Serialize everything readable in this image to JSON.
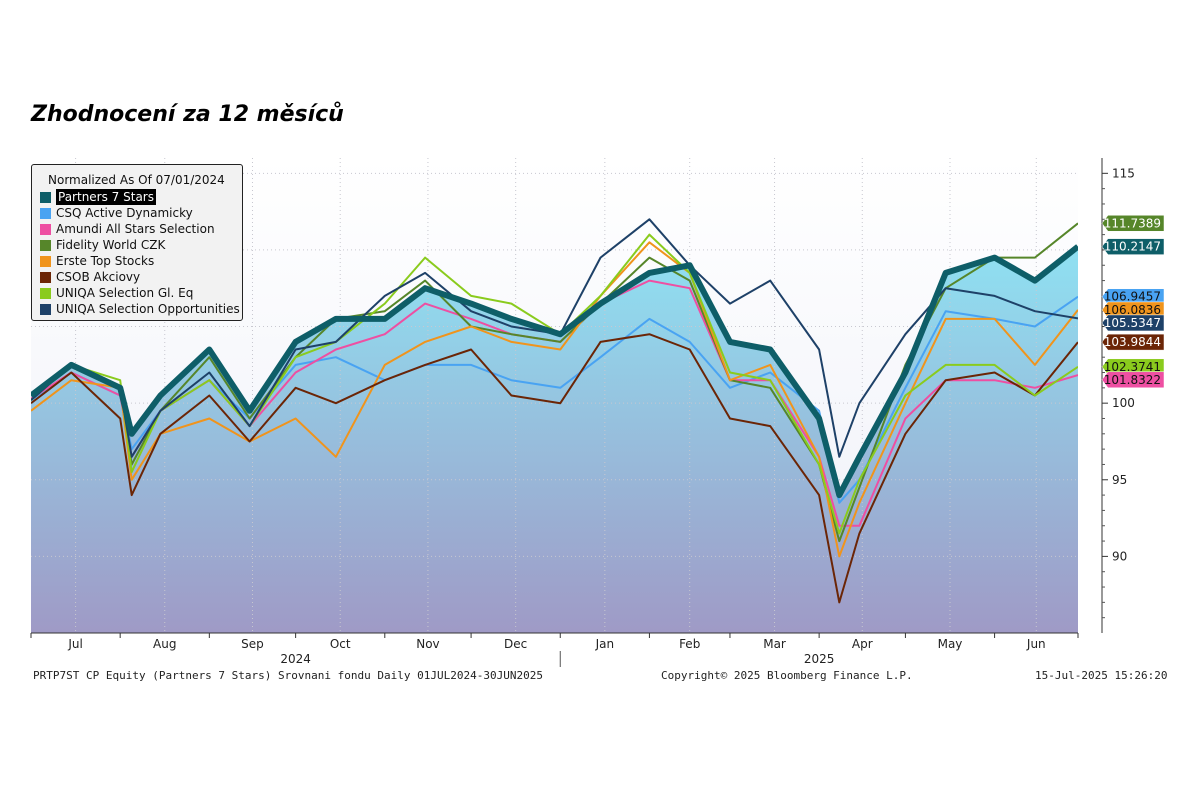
{
  "title": "Zhodnocení za 12 měsíců",
  "footer": {
    "left": "PRTP7ST CP Equity (Partners 7 Stars) Srovnani fondu  Daily 01JUL2024-30JUN2025",
    "center": "Copyright© 2025 Bloomberg Finance L.P.",
    "right": "15-Jul-2025 15:26:20"
  },
  "chart_data": {
    "type": "line",
    "legend_title": "Normalized As Of 07/01/2024",
    "legend_position": "top-left",
    "grid": true,
    "ylim": [
      85,
      116
    ],
    "y_ticks": [
      90,
      95,
      100,
      105,
      110,
      115
    ],
    "x_ticks": [
      "Jul",
      "Aug",
      "Sep",
      "Oct",
      "Nov",
      "Dec",
      "Jan",
      "Feb",
      "Mar",
      "Apr",
      "May",
      "Jun"
    ],
    "year_labels": [
      "2024",
      "2025"
    ],
    "x": [
      "2024-07-01",
      "2024-07-15",
      "2024-08-01",
      "2024-08-05",
      "2024-08-15",
      "2024-09-01",
      "2024-09-15",
      "2024-10-01",
      "2024-10-15",
      "2024-11-01",
      "2024-11-15",
      "2024-12-01",
      "2024-12-15",
      "2025-01-01",
      "2025-01-15",
      "2025-02-01",
      "2025-02-15",
      "2025-03-01",
      "2025-03-15",
      "2025-04-01",
      "2025-04-08",
      "2025-04-15",
      "2025-05-01",
      "2025-05-15",
      "2025-06-01",
      "2025-06-15",
      "2025-06-30"
    ],
    "series": [
      {
        "name": "Partners 7 Stars",
        "color": "#0e5e68",
        "last_label": "110.2147",
        "values": [
          100.5,
          102.5,
          101.0,
          98.0,
          100.5,
          103.5,
          99.5,
          104.0,
          105.5,
          105.5,
          107.5,
          106.5,
          105.5,
          104.5,
          106.5,
          108.5,
          109.0,
          104.0,
          103.5,
          99.0,
          94.0,
          96.5,
          102.0,
          108.5,
          109.5,
          108.0,
          110.2147
        ]
      },
      {
        "name": "CSQ Active Dynamicky",
        "color": "#49a3f2",
        "last_label": "106.9457",
        "values": [
          100.2,
          102.0,
          100.5,
          97.0,
          99.5,
          101.5,
          99.0,
          102.5,
          103.0,
          101.5,
          102.5,
          102.5,
          101.5,
          101.0,
          103.0,
          105.5,
          104.0,
          101.0,
          102.0,
          99.5,
          93.5,
          95.0,
          101.0,
          106.0,
          105.5,
          105.0,
          106.9457
        ]
      },
      {
        "name": "Amundi All Stars Selection",
        "color": "#ee4fa2",
        "last_label": "101.8322",
        "values": [
          100.3,
          102.0,
          100.5,
          96.5,
          99.5,
          101.5,
          98.5,
          102.0,
          103.5,
          104.5,
          106.5,
          105.5,
          104.5,
          104.0,
          106.5,
          108.0,
          107.5,
          101.5,
          101.5,
          96.5,
          92.0,
          92.0,
          99.0,
          101.5,
          101.5,
          101.0,
          101.8322
        ]
      },
      {
        "name": "Fidelity World CZK",
        "color": "#56862a",
        "last_label": "111.7389",
        "values": [
          100.2,
          102.5,
          101.0,
          96.0,
          99.5,
          103.0,
          99.0,
          103.0,
          105.5,
          106.0,
          108.0,
          105.0,
          104.5,
          104.0,
          106.5,
          109.5,
          108.0,
          101.5,
          101.0,
          96.0,
          91.0,
          94.5,
          102.5,
          107.5,
          109.5,
          109.5,
          111.7389
        ]
      },
      {
        "name": "Erste Top Stocks",
        "color": "#f0941c",
        "last_label": "106.0836",
        "values": [
          99.5,
          101.5,
          101.0,
          95.0,
          98.0,
          99.0,
          97.5,
          99.0,
          96.5,
          102.5,
          104.0,
          105.0,
          104.0,
          103.5,
          107.0,
          110.5,
          108.5,
          101.5,
          102.5,
          96.5,
          90.0,
          93.5,
          100.0,
          105.5,
          105.5,
          102.5,
          106.0836
        ]
      },
      {
        "name": "CSOB Akciovy",
        "color": "#6b2506",
        "last_label": "103.9844",
        "values": [
          100.0,
          102.0,
          99.0,
          94.0,
          98.0,
          100.5,
          97.5,
          101.0,
          100.0,
          101.5,
          102.5,
          103.5,
          100.5,
          100.0,
          104.0,
          104.5,
          103.5,
          99.0,
          98.5,
          94.0,
          87.0,
          91.5,
          98.0,
          101.5,
          102.0,
          100.5,
          103.9844
        ]
      },
      {
        "name": "UNIQA Selection Gl. Eq",
        "color": "#8acb1d",
        "last_label": "102.3741",
        "values": [
          100.5,
          102.5,
          101.5,
          95.5,
          99.5,
          101.5,
          98.5,
          103.0,
          104.0,
          106.5,
          109.5,
          107.0,
          106.5,
          104.5,
          107.0,
          111.0,
          108.5,
          102.0,
          101.5,
          96.0,
          91.5,
          95.0,
          100.5,
          102.5,
          102.5,
          100.5,
          102.3741
        ]
      },
      {
        "name": "UNIQA Selection Opportunities",
        "color": "#1e4168",
        "last_label": "105.5347",
        "values": [
          100.2,
          102.5,
          101.0,
          96.5,
          99.5,
          102.0,
          98.5,
          103.5,
          104.0,
          107.0,
          108.5,
          106.0,
          105.0,
          104.5,
          109.5,
          112.0,
          109.0,
          106.5,
          108.0,
          103.5,
          96.5,
          100.0,
          104.5,
          107.5,
          107.0,
          106.0,
          105.5347
        ]
      }
    ]
  }
}
